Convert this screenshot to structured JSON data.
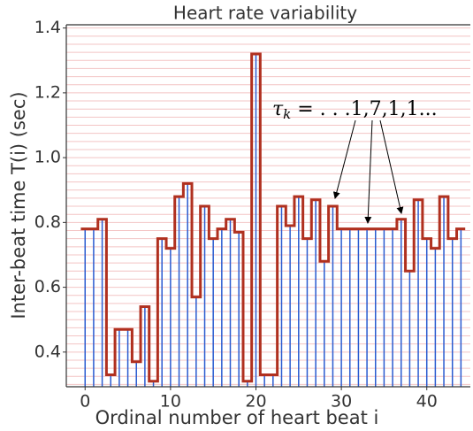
{
  "chart_data": {
    "type": "step-stem",
    "title": "Heart rate variability",
    "xlabel": "Ordinal number of heart beat i",
    "ylabel": "Inter-beat time T(i) (sec)",
    "annotation": {
      "symbol": "τ",
      "sub": "k",
      "text": " = . . .1,7,1,1..."
    },
    "values": [
      0.78,
      0.78,
      0.81,
      0.33,
      0.47,
      0.47,
      0.37,
      0.54,
      0.31,
      0.75,
      0.72,
      0.88,
      0.92,
      0.57,
      0.85,
      0.75,
      0.78,
      0.81,
      0.77,
      0.31,
      1.32,
      0.33,
      0.33,
      0.85,
      0.79,
      0.88,
      0.75,
      0.87,
      0.68,
      0.85,
      0.78,
      0.78,
      0.78,
      0.78,
      0.78,
      0.78,
      0.78,
      0.81,
      0.65,
      0.87,
      0.75,
      0.72,
      0.88,
      0.75,
      0.78
    ],
    "stem_color": "#2a5bd0",
    "step_color": "#b0301f",
    "grid_color": "#f3c4c4",
    "xlim": [
      -2.2,
      45.1
    ],
    "xticks": [
      0,
      10,
      20,
      30,
      40
    ],
    "ylim": [
      0.293,
      1.41
    ],
    "yticks": [
      0.4,
      0.6,
      0.8,
      {
        "value": 1,
        "label": "1.0"
      },
      1.2,
      1.4
    ],
    "minor_yticks": [
      0.3,
      0.325,
      0.35,
      0.375,
      0.4,
      0.425,
      0.45,
      0.475,
      0.5,
      0.525,
      0.55,
      0.575,
      0.6,
      0.625,
      0.65,
      0.675,
      0.7,
      0.725,
      0.75,
      0.775,
      0.8,
      0.825,
      0.85,
      0.875,
      0.9,
      0.925,
      0.95,
      0.975,
      1.0,
      1.025,
      1.05,
      1.075,
      1.1,
      1.125,
      1.15,
      1.175,
      1.2,
      1.225,
      1.25,
      1.275,
      1.3,
      1.325,
      1.35,
      1.375,
      1.4
    ],
    "grid": true
  }
}
